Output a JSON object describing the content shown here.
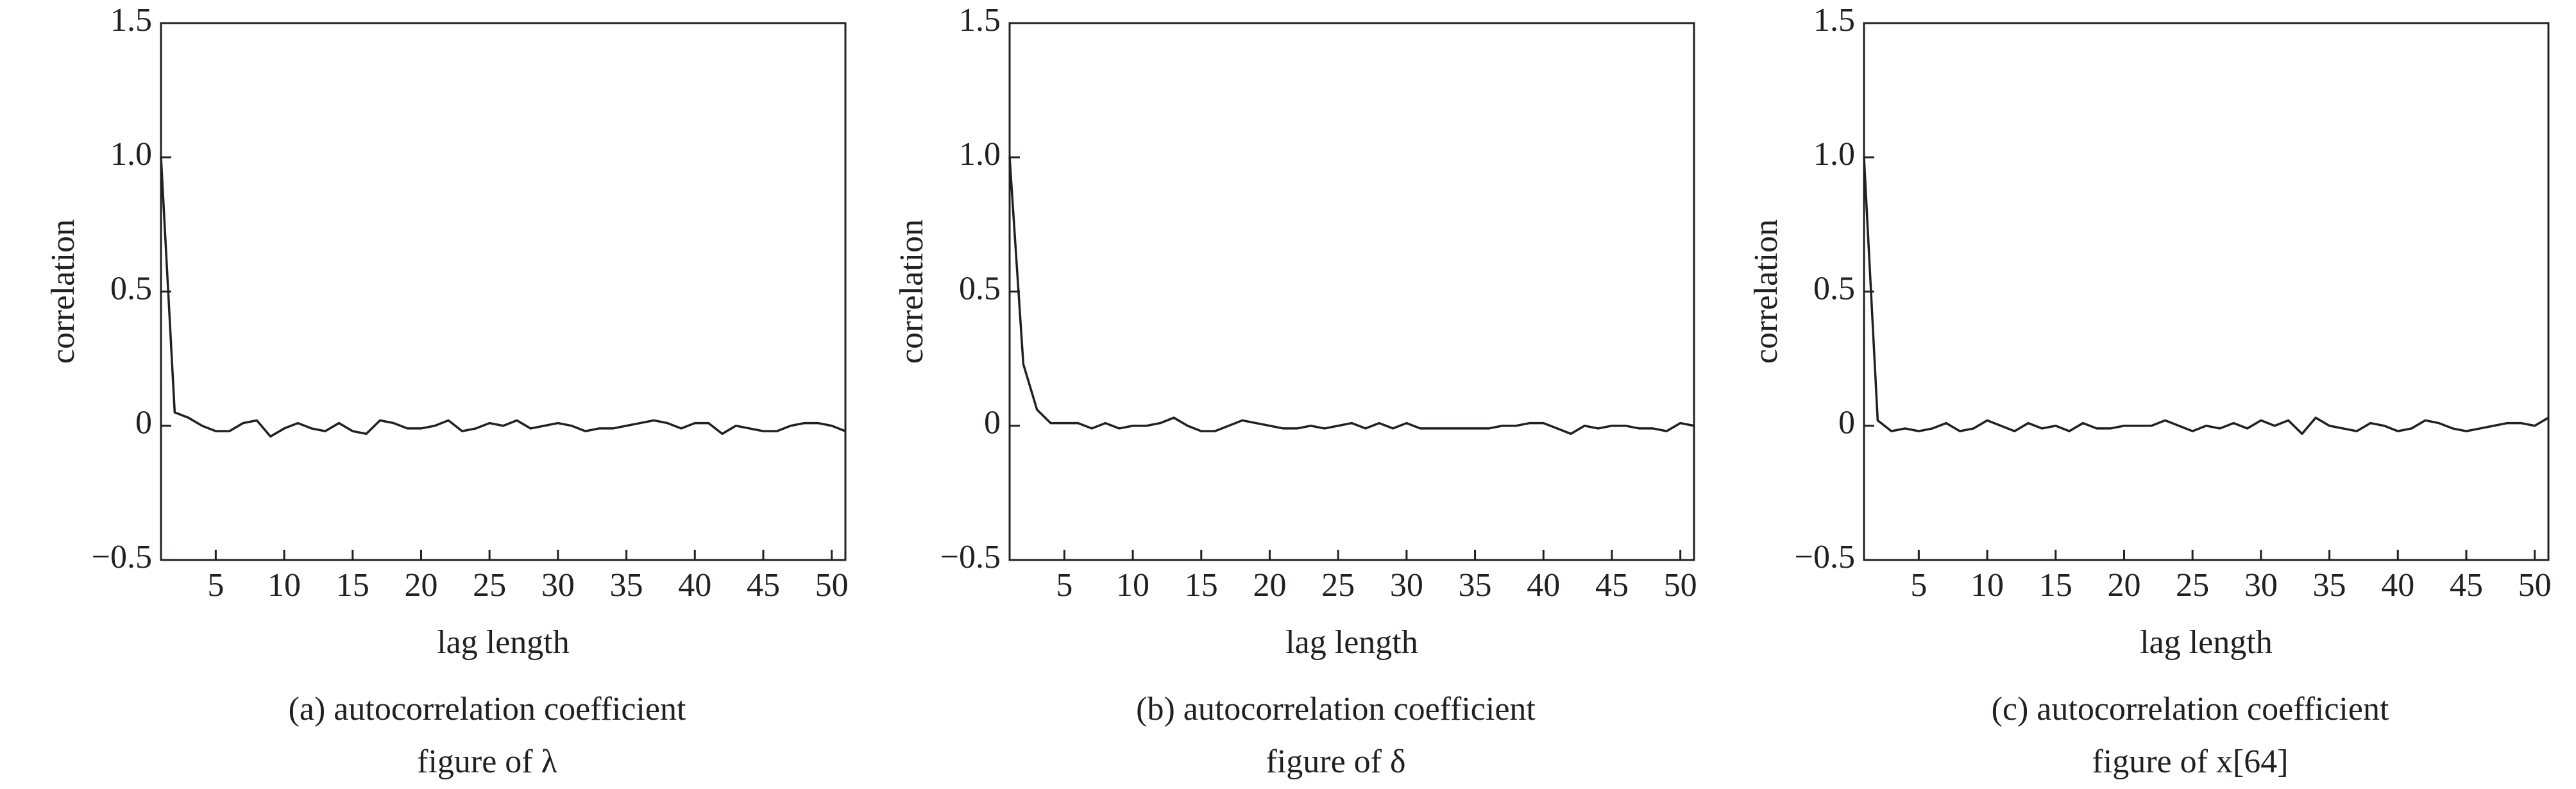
{
  "chart_data": [
    {
      "type": "line",
      "caption": [
        "(a) autocorrelation coefficient",
        "figure of λ"
      ],
      "xlabel": "lag length",
      "ylabel": "correlation",
      "xlim": [
        1,
        51
      ],
      "ylim": [
        -0.5,
        1.5
      ],
      "xticks": [
        5,
        10,
        15,
        20,
        25,
        30,
        35,
        40,
        45,
        50
      ],
      "yticks": [
        {
          "value": -0.5,
          "label": "−0.5"
        },
        0,
        0.5,
        {
          "value": 1,
          "label": "1.0"
        },
        1.5
      ],
      "x": [
        1,
        2,
        3,
        4,
        5,
        6,
        7,
        8,
        9,
        10,
        11,
        12,
        13,
        14,
        15,
        16,
        17,
        18,
        19,
        20,
        21,
        22,
        23,
        24,
        25,
        26,
        27,
        28,
        29,
        30,
        31,
        32,
        33,
        34,
        35,
        36,
        37,
        38,
        39,
        40,
        41,
        42,
        43,
        44,
        45,
        46,
        47,
        48,
        49,
        50,
        51
      ],
      "series": [
        {
          "color": "#231f20",
          "values": [
            1.0,
            0.05,
            0.03,
            0,
            -0.02,
            -0.02,
            0.01,
            0.02,
            -0.04,
            -0.01,
            0.01,
            -0.01,
            -0.02,
            0.01,
            -0.02,
            -0.03,
            0.02,
            0.01,
            -0.01,
            -0.01,
            0,
            0.02,
            -0.02,
            -0.01,
            0.01,
            0,
            0.02,
            -0.01,
            0,
            0.01,
            0,
            -0.02,
            -0.01,
            -0.01,
            0,
            0.01,
            0.02,
            0.01,
            -0.01,
            0.01,
            0.01,
            -0.03,
            0,
            -0.01,
            -0.02,
            -0.02,
            0,
            0.01,
            0.01,
            0,
            -0.02
          ]
        }
      ]
    },
    {
      "type": "line",
      "caption": [
        "(b) autocorrelation coefficient",
        "figure of δ"
      ],
      "xlabel": "lag length",
      "ylabel": "correlation",
      "xlim": [
        1,
        51
      ],
      "ylim": [
        -0.5,
        1.5
      ],
      "xticks": [
        5,
        10,
        15,
        20,
        25,
        30,
        35,
        40,
        45,
        50
      ],
      "yticks": [
        {
          "value": -0.5,
          "label": "−0.5"
        },
        0,
        0.5,
        {
          "value": 1,
          "label": "1.0"
        },
        1.5
      ],
      "x": [
        1,
        2,
        3,
        4,
        5,
        6,
        7,
        8,
        9,
        10,
        11,
        12,
        13,
        14,
        15,
        16,
        17,
        18,
        19,
        20,
        21,
        22,
        23,
        24,
        25,
        26,
        27,
        28,
        29,
        30,
        31,
        32,
        33,
        34,
        35,
        36,
        37,
        38,
        39,
        40,
        41,
        42,
        43,
        44,
        45,
        46,
        47,
        48,
        49,
        50,
        51
      ],
      "series": [
        {
          "color": "#231f20",
          "values": [
            1.0,
            0.23,
            0.06,
            0.01,
            0.01,
            0.01,
            -0.01,
            0.01,
            -0.01,
            0,
            0,
            0.01,
            0.03,
            0,
            -0.02,
            -0.02,
            0,
            0.02,
            0.01,
            0,
            -0.01,
            -0.01,
            0,
            -0.01,
            0,
            0.01,
            -0.01,
            0.01,
            -0.01,
            0.01,
            -0.01,
            -0.01,
            -0.01,
            -0.01,
            -0.01,
            -0.01,
            0,
            0,
            0.01,
            0.01,
            -0.01,
            -0.03,
            0,
            -0.01,
            0,
            0,
            -0.01,
            -0.01,
            -0.02,
            0.01,
            0
          ]
        }
      ]
    },
    {
      "type": "line",
      "caption": [
        "(c) autocorrelation coefficient",
        "figure of x[64]"
      ],
      "xlabel": "lag length",
      "ylabel": "correlation",
      "xlim": [
        1,
        51
      ],
      "ylim": [
        -0.5,
        1.5
      ],
      "xticks": [
        5,
        10,
        15,
        20,
        25,
        30,
        35,
        40,
        45,
        50
      ],
      "yticks": [
        {
          "value": -0.5,
          "label": "−0.5"
        },
        0,
        0.5,
        {
          "value": 1,
          "label": "1.0"
        },
        1.5
      ],
      "x": [
        1,
        2,
        3,
        4,
        5,
        6,
        7,
        8,
        9,
        10,
        11,
        12,
        13,
        14,
        15,
        16,
        17,
        18,
        19,
        20,
        21,
        22,
        23,
        24,
        25,
        26,
        27,
        28,
        29,
        30,
        31,
        32,
        33,
        34,
        35,
        36,
        37,
        38,
        39,
        40,
        41,
        42,
        43,
        44,
        45,
        46,
        47,
        48,
        49,
        50,
        51
      ],
      "series": [
        {
          "color": "#231f20",
          "values": [
            1.0,
            0.02,
            -0.02,
            -0.01,
            -0.02,
            -0.01,
            0.01,
            -0.02,
            -0.01,
            0.02,
            0,
            -0.02,
            0.01,
            -0.01,
            0,
            -0.02,
            0.01,
            -0.01,
            -0.01,
            0,
            0,
            0,
            0.02,
            0,
            -0.02,
            0,
            -0.01,
            0.01,
            -0.01,
            0.02,
            0,
            0.02,
            -0.03,
            0.03,
            0,
            -0.01,
            -0.02,
            0.01,
            0,
            -0.02,
            -0.01,
            0.02,
            0.01,
            -0.01,
            -0.02,
            -0.01,
            0,
            0.01,
            0.01,
            0,
            0.03
          ]
        }
      ]
    }
  ]
}
